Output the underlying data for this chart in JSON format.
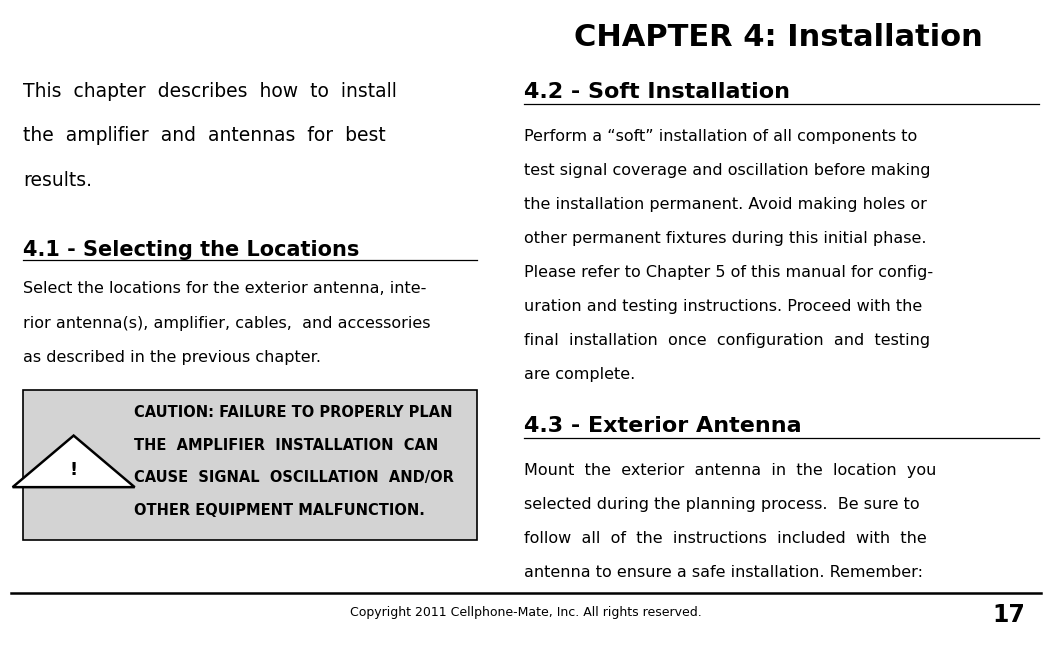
{
  "title": "CHAPTER 4: Installation",
  "bg_color": "#ffffff",
  "text_color": "#000000",
  "caution_bg": "#d3d3d3",
  "section41_heading": "4.1 - Selecting the Locations",
  "section42_heading": "4.2 - Soft Installation",
  "section43_heading": "4.3 - Exterior Antenna",
  "footer_text": "Copyright 2011 Cellphone-Mate, Inc. All rights reserved.",
  "footer_page": "17",
  "intro_lines": [
    "This  chapter  describes  how  to  install",
    "the  amplifier  and  antennas  for  best",
    "results."
  ],
  "sec41_lines": [
    "Select the locations for the exterior antenna, inte-",
    "rior antenna(s), amplifier, cables,  and accessories",
    "as described in the previous chapter."
  ],
  "caution_lines": [
    "CAUTION: FAILURE TO PROPERLY PLAN",
    "THE  AMPLIFIER  INSTALLATION  CAN",
    "CAUSE  SIGNAL  OSCILLATION  AND/OR",
    "OTHER EQUIPMENT MALFUNCTION."
  ],
  "sec42_lines": [
    "Perform a “soft” installation of all components to",
    "test signal coverage and oscillation before making",
    "the installation permanent. Avoid making holes or",
    "other permanent fixtures during this initial phase.",
    "Please refer to Chapter 5 of this manual for config-",
    "uration and testing instructions. Proceed with the",
    "final  installation  once  configuration  and  testing",
    "are complete."
  ],
  "sec43_lines": [
    "Mount  the  exterior  antenna  in  the  location  you",
    "selected during the planning process.  Be sure to",
    "follow  all  of  the  instructions  included  with  the",
    "antenna to ensure a safe installation. Remember:"
  ]
}
